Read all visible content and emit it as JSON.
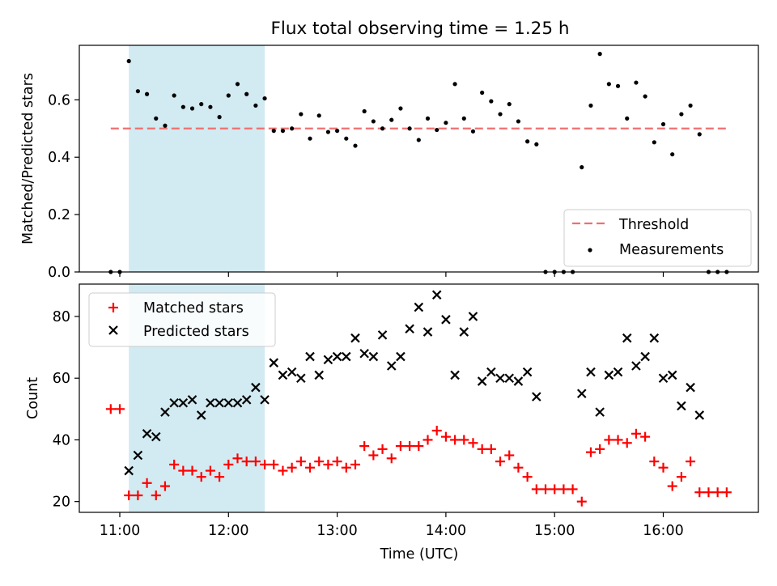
{
  "chart_data": [
    {
      "type": "scatter",
      "title": "Flux total observing time = 1.25 h",
      "ylabel": "Matched/Predicted stars",
      "ylim": [
        0,
        0.79
      ],
      "yticks": [
        "0.0",
        "0.2",
        "0.4",
        "0.6"
      ],
      "yticks_values": [
        0.0,
        0.2,
        0.4,
        0.6
      ],
      "grid": false,
      "legend": "lower-right",
      "shaded_region": {
        "x_start": "11:05",
        "x_end": "12:20",
        "color": "#add8e6"
      },
      "threshold": {
        "name": "Threshold",
        "value": 0.5,
        "x_start": "10:55",
        "x_end": "16:35",
        "color": "#f07070"
      },
      "series": [
        {
          "name": "Measurements",
          "color": "#000000",
          "points": [
            [
              "10:55",
              0.0
            ],
            [
              "11:00",
              0.0
            ],
            [
              "11:05",
              0.735
            ],
            [
              "11:10",
              0.63
            ],
            [
              "11:15",
              0.62
            ],
            [
              "11:20",
              0.535
            ],
            [
              "11:25",
              0.51
            ],
            [
              "11:30",
              0.615
            ],
            [
              "11:35",
              0.575
            ],
            [
              "11:40",
              0.57
            ],
            [
              "11:45",
              0.585
            ],
            [
              "11:50",
              0.575
            ],
            [
              "11:55",
              0.54
            ],
            [
              "12:00",
              0.615
            ],
            [
              "12:05",
              0.655
            ],
            [
              "12:10",
              0.62
            ],
            [
              "12:15",
              0.58
            ],
            [
              "12:20",
              0.605
            ],
            [
              "12:25",
              0.492
            ],
            [
              "12:30",
              0.492
            ],
            [
              "12:35",
              0.5
            ],
            [
              "12:40",
              0.55
            ],
            [
              "12:45",
              0.465
            ],
            [
              "12:50",
              0.545
            ],
            [
              "12:55",
              0.488
            ],
            [
              "13:00",
              0.492
            ],
            [
              "13:05",
              0.465
            ],
            [
              "13:10",
              0.44
            ],
            [
              "13:15",
              0.56
            ],
            [
              "13:20",
              0.525
            ],
            [
              "13:25",
              0.5
            ],
            [
              "13:30",
              0.53
            ],
            [
              "13:35",
              0.57
            ],
            [
              "13:40",
              0.5
            ],
            [
              "13:45",
              0.46
            ],
            [
              "13:50",
              0.535
            ],
            [
              "13:55",
              0.495
            ],
            [
              "14:00",
              0.52
            ],
            [
              "14:05",
              0.655
            ],
            [
              "14:10",
              0.535
            ],
            [
              "14:15",
              0.49
            ],
            [
              "14:20",
              0.625
            ],
            [
              "14:25",
              0.595
            ],
            [
              "14:30",
              0.55
            ],
            [
              "14:35",
              0.585
            ],
            [
              "14:40",
              0.525
            ],
            [
              "14:45",
              0.455
            ],
            [
              "14:50",
              0.445
            ],
            [
              "14:55",
              0.0
            ],
            [
              "15:00",
              0.0
            ],
            [
              "15:05",
              0.0
            ],
            [
              "15:10",
              0.0
            ],
            [
              "15:15",
              0.365
            ],
            [
              "15:20",
              0.58
            ],
            [
              "15:25",
              0.76
            ],
            [
              "15:30",
              0.655
            ],
            [
              "15:35",
              0.648
            ],
            [
              "15:40",
              0.535
            ],
            [
              "15:45",
              0.66
            ],
            [
              "15:50",
              0.612
            ],
            [
              "15:55",
              0.452
            ],
            [
              "16:00",
              0.515
            ],
            [
              "16:05",
              0.41
            ],
            [
              "16:10",
              0.55
            ],
            [
              "16:15",
              0.58
            ],
            [
              "16:20",
              0.48
            ],
            [
              "16:25",
              0.0
            ],
            [
              "16:30",
              0.0
            ],
            [
              "16:35",
              0.0
            ]
          ]
        }
      ]
    },
    {
      "type": "scatter",
      "xlabel": "Time (UTC)",
      "ylabel": "Count",
      "xticks": [
        "11:00",
        "12:00",
        "13:00",
        "14:00",
        "15:00",
        "16:00"
      ],
      "ylim": [
        16.5,
        90.5
      ],
      "yticks": [
        "20",
        "40",
        "60",
        "80"
      ],
      "yticks_values": [
        20,
        40,
        60,
        80
      ],
      "grid": false,
      "legend": "upper-left",
      "shaded_region": {
        "x_start": "11:05",
        "x_end": "12:20",
        "color": "#add8e6"
      },
      "series": [
        {
          "name": "Matched stars",
          "marker": "+",
          "color": "#ff0000",
          "points": [
            [
              "10:55",
              50
            ],
            [
              "11:00",
              50
            ],
            [
              "11:05",
              22
            ],
            [
              "11:10",
              22
            ],
            [
              "11:15",
              26
            ],
            [
              "11:20",
              22
            ],
            [
              "11:25",
              25
            ],
            [
              "11:30",
              32
            ],
            [
              "11:35",
              30
            ],
            [
              "11:40",
              30
            ],
            [
              "11:45",
              28
            ],
            [
              "11:50",
              30
            ],
            [
              "11:55",
              28
            ],
            [
              "12:00",
              32
            ],
            [
              "12:05",
              34
            ],
            [
              "12:10",
              33
            ],
            [
              "12:15",
              33
            ],
            [
              "12:20",
              32
            ],
            [
              "12:25",
              32
            ],
            [
              "12:30",
              30
            ],
            [
              "12:35",
              31
            ],
            [
              "12:40",
              33
            ],
            [
              "12:45",
              31
            ],
            [
              "12:50",
              33
            ],
            [
              "12:55",
              32
            ],
            [
              "13:00",
              33
            ],
            [
              "13:05",
              31
            ],
            [
              "13:10",
              32
            ],
            [
              "13:15",
              38
            ],
            [
              "13:20",
              35
            ],
            [
              "13:25",
              37
            ],
            [
              "13:30",
              34
            ],
            [
              "13:35",
              38
            ],
            [
              "13:40",
              38
            ],
            [
              "13:45",
              38
            ],
            [
              "13:50",
              40
            ],
            [
              "13:55",
              43
            ],
            [
              "14:00",
              41
            ],
            [
              "14:05",
              40
            ],
            [
              "14:10",
              40
            ],
            [
              "14:15",
              39
            ],
            [
              "14:20",
              37
            ],
            [
              "14:25",
              37
            ],
            [
              "14:30",
              33
            ],
            [
              "14:35",
              35
            ],
            [
              "14:40",
              31
            ],
            [
              "14:45",
              28
            ],
            [
              "14:50",
              24
            ],
            [
              "14:55",
              24
            ],
            [
              "15:00",
              24
            ],
            [
              "15:05",
              24
            ],
            [
              "15:10",
              24
            ],
            [
              "15:15",
              20
            ],
            [
              "15:20",
              36
            ],
            [
              "15:25",
              37
            ],
            [
              "15:30",
              40
            ],
            [
              "15:35",
              40
            ],
            [
              "15:40",
              39
            ],
            [
              "15:45",
              42
            ],
            [
              "15:50",
              41
            ],
            [
              "15:55",
              33
            ],
            [
              "16:00",
              31
            ],
            [
              "16:05",
              25
            ],
            [
              "16:10",
              28
            ],
            [
              "16:15",
              33
            ],
            [
              "16:20",
              23
            ],
            [
              "16:25",
              23
            ],
            [
              "16:30",
              23
            ],
            [
              "16:35",
              23
            ]
          ]
        },
        {
          "name": "Predicted stars",
          "marker": "x",
          "color": "#000000",
          "points": [
            [
              "11:05",
              30
            ],
            [
              "11:10",
              35
            ],
            [
              "11:15",
              42
            ],
            [
              "11:20",
              41
            ],
            [
              "11:25",
              49
            ],
            [
              "11:30",
              52
            ],
            [
              "11:35",
              52
            ],
            [
              "11:40",
              53
            ],
            [
              "11:45",
              48
            ],
            [
              "11:50",
              52
            ],
            [
              "11:55",
              52
            ],
            [
              "12:00",
              52
            ],
            [
              "12:05",
              52
            ],
            [
              "12:10",
              53
            ],
            [
              "12:15",
              57
            ],
            [
              "12:20",
              53
            ],
            [
              "12:25",
              65
            ],
            [
              "12:30",
              61
            ],
            [
              "12:35",
              62
            ],
            [
              "12:40",
              60
            ],
            [
              "12:45",
              67
            ],
            [
              "12:50",
              61
            ],
            [
              "12:55",
              66
            ],
            [
              "13:00",
              67
            ],
            [
              "13:05",
              67
            ],
            [
              "13:10",
              73
            ],
            [
              "13:15",
              68
            ],
            [
              "13:20",
              67
            ],
            [
              "13:25",
              74
            ],
            [
              "13:30",
              64
            ],
            [
              "13:35",
              67
            ],
            [
              "13:40",
              76
            ],
            [
              "13:45",
              83
            ],
            [
              "13:50",
              75
            ],
            [
              "13:55",
              87
            ],
            [
              "14:00",
              79
            ],
            [
              "14:05",
              61
            ],
            [
              "14:10",
              75
            ],
            [
              "14:15",
              80
            ],
            [
              "14:20",
              59
            ],
            [
              "14:25",
              62
            ],
            [
              "14:30",
              60
            ],
            [
              "14:35",
              60
            ],
            [
              "14:40",
              59
            ],
            [
              "14:45",
              62
            ],
            [
              "14:50",
              54
            ],
            [
              "15:15",
              55
            ],
            [
              "15:20",
              62
            ],
            [
              "15:25",
              49
            ],
            [
              "15:30",
              61
            ],
            [
              "15:35",
              62
            ],
            [
              "15:40",
              73
            ],
            [
              "15:45",
              64
            ],
            [
              "15:50",
              67
            ],
            [
              "15:55",
              73
            ],
            [
              "16:00",
              60
            ],
            [
              "16:05",
              61
            ],
            [
              "16:10",
              51
            ],
            [
              "16:15",
              57
            ],
            [
              "16:20",
              48
            ]
          ]
        }
      ]
    }
  ]
}
